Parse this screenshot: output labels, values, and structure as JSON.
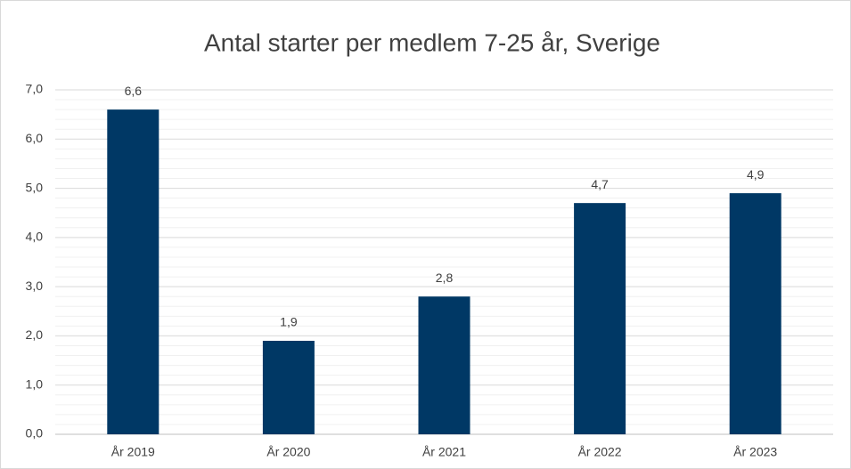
{
  "chart_data": {
    "type": "bar",
    "title": "Antal starter per medlem 7-25 år, Sverige",
    "categories": [
      "År 2019",
      "År 2020",
      "År 2021",
      "År 2022",
      "År 2023"
    ],
    "values": [
      6.6,
      1.9,
      2.8,
      4.7,
      4.9
    ],
    "value_labels": [
      "6,6",
      "1,9",
      "2,8",
      "4,7",
      "4,9"
    ],
    "color": "#003865",
    "ylim": [
      0,
      7
    ],
    "yticks": [
      {
        "value": 0,
        "label": "0,0"
      },
      {
        "value": 1,
        "label": "1,0"
      },
      {
        "value": 2,
        "label": "2,0"
      },
      {
        "value": 3,
        "label": "3,0"
      },
      {
        "value": 4,
        "label": "4,0"
      },
      {
        "value": 5,
        "label": "5,0"
      },
      {
        "value": 6,
        "label": "6,0"
      },
      {
        "value": 7,
        "label": "7,0"
      }
    ],
    "grid": true,
    "minor_grid": true
  }
}
